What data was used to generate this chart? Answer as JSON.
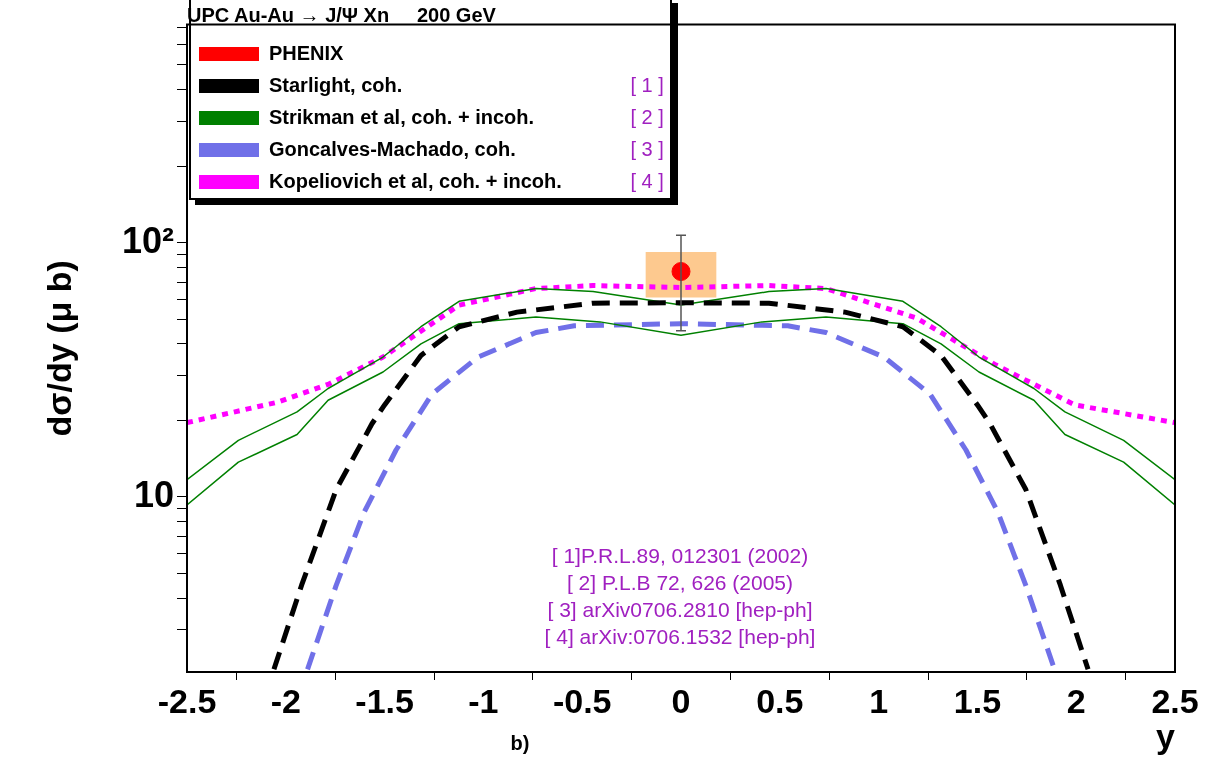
{
  "chart_data": {
    "type": "line",
    "legend_title": "UPC Au-Au → J/Ψ Xn     200 GeV",
    "xlabel": "y",
    "ylabel": "dσ/dy (μ b)",
    "log": "y",
    "grid": false,
    "legend": "top",
    "xlim": [
      -2.5,
      2.5
    ],
    "xticks": [
      -2.5,
      -2,
      -1.5,
      -1,
      -0.5,
      0,
      0.5,
      1,
      1.5,
      2,
      2.5
    ],
    "ylim": [
      2.05,
      720
    ],
    "yticks": [
      {
        "value": 3,
        "label": null
      },
      {
        "value": 4,
        "label": null
      },
      {
        "value": 5,
        "label": null
      },
      {
        "value": 6,
        "label": null
      },
      {
        "value": 7,
        "label": null
      },
      {
        "value": 8,
        "label": null
      },
      {
        "value": 9,
        "label": null
      },
      10,
      {
        "value": 20,
        "label": null
      },
      {
        "value": 30,
        "label": null
      },
      {
        "value": 40,
        "label": null
      },
      {
        "value": 50,
        "label": null
      },
      {
        "value": 60,
        "label": null
      },
      {
        "value": 70,
        "label": null
      },
      {
        "value": 80,
        "label": null
      },
      {
        "value": 90,
        "label": null
      },
      {
        "value": 100,
        "label": "10²"
      },
      {
        "value": 200,
        "label": null
      },
      {
        "value": 300,
        "label": null
      },
      {
        "value": 400,
        "label": null
      },
      {
        "value": 500,
        "label": null
      },
      {
        "value": 600,
        "label": null
      },
      {
        "value": 700,
        "label": null
      }
    ],
    "annotations": [
      "[ 1 ]",
      "[ 2 ]",
      "[ 3 ]",
      "[ 4 ]",
      "[ 1]P.R.L.89,  012301 (2002)",
      "[ 2] P.L.B 72, 626 (2005)",
      "[ 3] arXiv0706.2810 [hep-ph]",
      "[ 4] arXiv:0706.1532 [hep-ph]",
      "b)"
    ],
    "series": [
      {
        "type": "bar",
        "color": "#fdc98f",
        "x": [
          0
        ],
        "base": [
          61
        ],
        "values": [
          30.5
        ]
      },
      {
        "type": "scatter",
        "name": "PHENIX",
        "color": "#ff0000",
        "marker": "circle",
        "x": [
          0
        ],
        "values": [
          77
        ],
        "errors": [
          [
            45,
            107
          ]
        ]
      },
      {
        "name": "Starlight, coh.",
        "color": "#000000",
        "line_style": "dashed",
        "x": [
          -2.06,
          -1.92,
          -1.745,
          -1.564,
          -1.5,
          -1.316,
          -1.123,
          -0.83,
          -0.445,
          0,
          0.445,
          0.83,
          1.123,
          1.316,
          1.5,
          1.564,
          1.745,
          1.92,
          2.06
        ],
        "values": [
          2.1,
          4.5,
          10.7,
          19.4,
          23,
          36,
          46.7,
          53.3,
          57.8,
          58,
          57.8,
          53.3,
          46.7,
          36,
          23,
          19.4,
          10.7,
          4.5,
          2.1
        ]
      },
      {
        "name": "Strikman et al, coh. + incoh.",
        "color": "#008000",
        "line_style": "solid",
        "x": [
          -2.5,
          -2.24,
          -1.943,
          -1.786,
          -1.705,
          -1.508,
          -1.316,
          -1.123,
          -0.734,
          -0.445,
          0,
          0.445,
          0.734,
          1.123,
          1.316,
          1.508,
          1.705,
          1.786,
          1.943,
          2.24,
          2.5
        ],
        "values": [
          11.7,
          16.7,
          21.6,
          26.7,
          29,
          35.5,
          46.7,
          58.8,
          66,
          64.2,
          56.8,
          64.2,
          66,
          58.8,
          46.7,
          35.5,
          29,
          26.7,
          21.6,
          16.7,
          11.7
        ]
      },
      {
        "color": "#008000",
        "line_style": "solid",
        "x": [
          -2.5,
          -2.24,
          -1.943,
          -1.786,
          -1.508,
          -1.316,
          -1.123,
          -0.734,
          -0.41,
          0,
          0.41,
          0.734,
          1.123,
          1.316,
          1.508,
          1.786,
          1.943,
          2.24,
          2.5
        ],
        "values": [
          9.3,
          13.7,
          17.6,
          24,
          31,
          40,
          48,
          51,
          48.8,
          43.2,
          48.8,
          51,
          48,
          40,
          31,
          24,
          17.6,
          13.7,
          9.3
        ]
      },
      {
        "name": "Goncalves-Machado, coh.",
        "color": "#7070e8",
        "line_style": "dashed",
        "x": [
          -1.89,
          -1.746,
          -1.604,
          -1.442,
          -1.26,
          -1.027,
          -0.734,
          -0.54,
          0,
          0.54,
          0.734,
          1.027,
          1.26,
          1.442,
          1.604,
          1.746,
          1.89
        ],
        "values": [
          2.1,
          4.47,
          8.7,
          15.3,
          25.4,
          35.5,
          44.3,
          47.1,
          48,
          47.1,
          44.3,
          35.5,
          25.4,
          15.3,
          8.7,
          4.47,
          2.1
        ]
      },
      {
        "name": "Kopeliovich et al, coh. + incoh.",
        "color": "#ff00ff",
        "line_style": "dotted",
        "x": [
          -2.5,
          -2.04,
          -1.786,
          -1.508,
          -1.123,
          -0.734,
          -0.445,
          0,
          0.445,
          0.734,
          1.19,
          1.594,
          1.994,
          2.5
        ],
        "values": [
          19.6,
          23.6,
          27.7,
          35.5,
          56.8,
          66,
          67.8,
          66.6,
          67.8,
          66,
          50.6,
          33,
          23,
          19.6
        ]
      }
    ]
  }
}
